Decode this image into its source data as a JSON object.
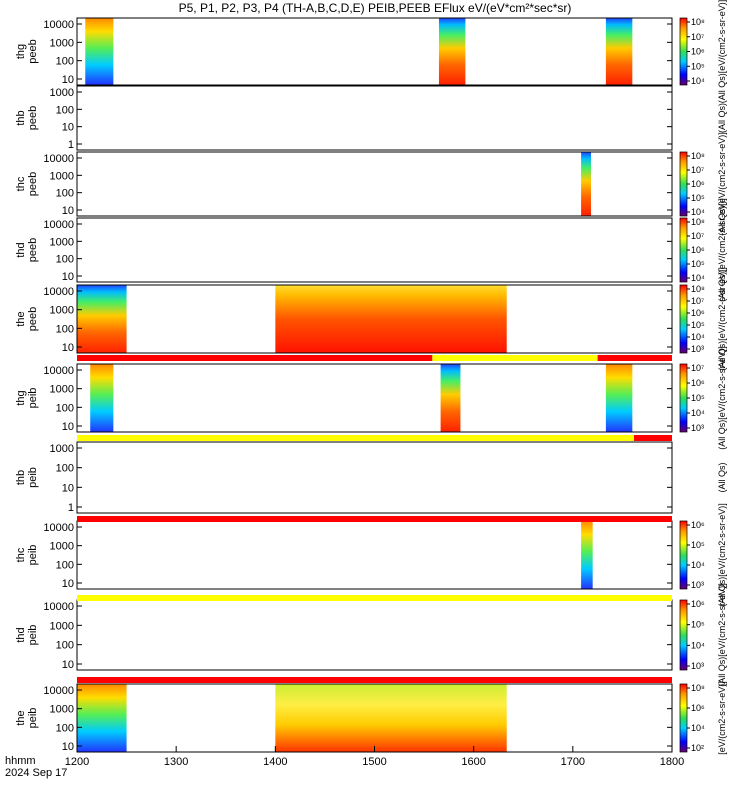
{
  "title": "P5, P1, P2, P3, P4 (TH-A,B,C,D,E) PEIB,PEEB EFlux eV/(eV*cm²*sec*sr)",
  "colors": {
    "red": "#ff0000",
    "orange": "#ff9900",
    "yellow": "#ffff00",
    "green": "#66e066",
    "blue": "#0000ff",
    "cyan": "#00d0ff",
    "purple": "#800080",
    "white": "#ffffff"
  },
  "chart_data": {
    "type": "heatmap",
    "x_axis": {
      "range": [
        "12:00",
        "18:00"
      ],
      "ticks": [
        "1200",
        "1300",
        "1400",
        "1500",
        "1600",
        "1700",
        "1800"
      ],
      "label_line1": "hhmm",
      "label_line2": "2024 Sep 17"
    },
    "panels": [
      {
        "ylabel1": "thg",
        "ylabel2": "peeb",
        "yticks": [
          "10000",
          "1000",
          "100",
          "10"
        ],
        "blocks": [
          [
            "12:05",
            "12:22"
          ],
          [
            "15:39",
            "15:55"
          ],
          [
            "17:20",
            "17:36"
          ]
        ],
        "cbar_ticks": [
          "10⁸",
          "10⁷",
          "10⁶",
          "10⁵",
          "10⁴"
        ],
        "cbar_label": "(All Qs)[eV/(cm2-s-sr-eV)]"
      },
      {
        "ylabel1": "thb",
        "ylabel2": "peeb",
        "yticks": [
          "1000",
          "100",
          "10",
          "1"
        ],
        "blocks": [],
        "cbar_ticks": [],
        "cbar_label": "(All Qs)"
      },
      {
        "ylabel1": "thc",
        "ylabel2": "peeb",
        "yticks": [
          "10000",
          "1000",
          "100",
          "10"
        ],
        "blocks": [
          [
            "17:05",
            "17:11"
          ]
        ],
        "cbar_ticks": [
          "10⁸",
          "10⁷",
          "10⁶",
          "10⁵",
          "10⁴"
        ],
        "cbar_label": "(All Qs)[eV/(cm2-s-sr-eV)]"
      },
      {
        "ylabel1": "thd",
        "ylabel2": "peeb",
        "yticks": [
          "10000",
          "1000",
          "100",
          "10"
        ],
        "blocks": [],
        "cbar_ticks": [
          "10⁸",
          "10⁷",
          "10⁶",
          "10⁵",
          "10⁴"
        ],
        "cbar_label": "(All Qs)[eV/(cm2-s-sr-eV)]"
      },
      {
        "ylabel1": "the",
        "ylabel2": "peeb",
        "yticks": [
          "10000",
          "1000",
          "100",
          "10"
        ],
        "blocks": [
          [
            "12:00",
            "12:30"
          ],
          [
            "14:00",
            "16:20"
          ]
        ],
        "cbar_ticks": [
          "10⁸",
          "10⁷",
          "10⁶",
          "10⁵",
          "10⁴",
          "10³"
        ],
        "cbar_label": "(All Qs)[eV/(cm2-s-sr-eV)]"
      },
      {
        "ylabel1": "thg",
        "ylabel2": "peib",
        "yticks": [
          "10000",
          "1000",
          "100",
          "10"
        ],
        "blocks": [
          [
            "12:08",
            "12:22"
          ],
          [
            "15:40",
            "15:52"
          ],
          [
            "17:20",
            "17:36"
          ]
        ],
        "cbar_ticks": [
          "10⁷",
          "10⁶",
          "10⁵",
          "10⁴",
          "10³"
        ],
        "cbar_label": "(All Qs)[eV/(cm2-s-sr-eV)]"
      },
      {
        "ylabel1": "thb",
        "ylabel2": "peib",
        "yticks": [
          "1000",
          "100",
          "10",
          "1"
        ],
        "blocks": [],
        "cbar_ticks": [],
        "cbar_label": "(All Qs)"
      },
      {
        "ylabel1": "thc",
        "ylabel2": "peib",
        "yticks": [
          "10000",
          "1000",
          "100",
          "10"
        ],
        "blocks": [
          [
            "17:05",
            "17:12"
          ]
        ],
        "cbar_ticks": [
          "10⁶",
          "10⁵",
          "10⁴",
          "10³"
        ],
        "cbar_label": "(All Qs)[eV/(cm2-s-sr-eV)]"
      },
      {
        "ylabel1": "thd",
        "ylabel2": "peib",
        "yticks": [
          "10000",
          "1000",
          "100",
          "10"
        ],
        "blocks": [],
        "cbar_ticks": [
          "10⁶",
          "10⁵",
          "10⁴",
          "10³"
        ],
        "cbar_label": "(All Qs)[eV/(cm2-s-sr-eV)]"
      },
      {
        "ylabel1": "the",
        "ylabel2": "peib",
        "yticks": [
          "10000",
          "1000",
          "100",
          "10"
        ],
        "blocks": [
          [
            "12:00",
            "12:30"
          ],
          [
            "14:00",
            "16:20"
          ]
        ],
        "cbar_ticks": [
          "10⁸",
          "10⁶",
          "10⁴",
          "10²"
        ],
        "cbar_label": "[eV/(cm2-s-sr-eV)]"
      }
    ],
    "mode_bars": [
      {
        "after_panel": 4,
        "segments": [
          [
            "12:00",
            "15:35",
            "red"
          ],
          [
            "15:35",
            "17:15",
            "yellow"
          ],
          [
            "17:15",
            "18:00",
            "red"
          ]
        ]
      },
      {
        "after_panel": 5,
        "segments": [
          [
            "12:00",
            "17:37",
            "yellow"
          ],
          [
            "17:37",
            "18:00",
            "red"
          ]
        ]
      },
      {
        "after_panel": 6,
        "segments": [
          [
            "12:00",
            "18:00",
            "red"
          ]
        ]
      },
      {
        "after_panel": 7,
        "segments": [
          [
            "12:00",
            "18:00",
            "yellow"
          ]
        ]
      },
      {
        "after_panel": 8,
        "segments": [
          [
            "12:00",
            "18:00",
            "red"
          ]
        ]
      }
    ]
  }
}
